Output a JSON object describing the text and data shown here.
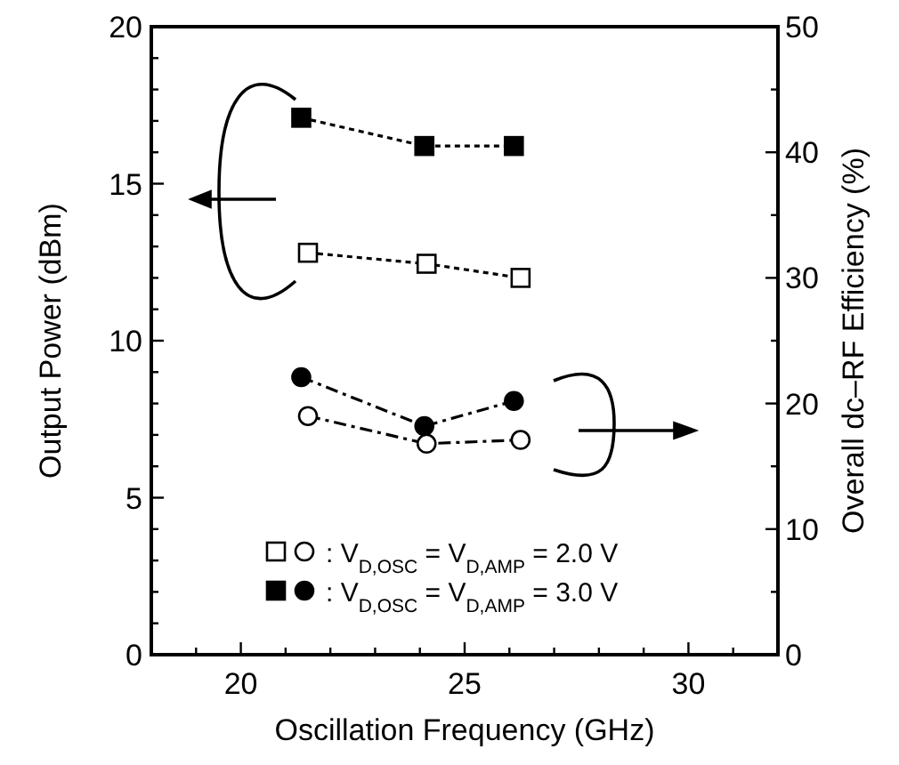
{
  "chart_data": {
    "type": "line",
    "xlabel": "Oscillation Frequency  (GHz)",
    "ylabel": "Output Power  (dBm)",
    "y2label": "Overall dc–RF Efficiency  (%)",
    "xlim": [
      18,
      32
    ],
    "xticks": [
      {
        "value": 19,
        "label": null
      },
      20,
      {
        "value": 21,
        "label": null
      },
      {
        "value": 22,
        "label": null
      },
      {
        "value": 23,
        "label": null
      },
      {
        "value": 24,
        "label": null
      },
      25,
      {
        "value": 26,
        "label": null
      },
      {
        "value": 27,
        "label": null
      },
      {
        "value": 28,
        "label": null
      },
      {
        "value": 29,
        "label": null
      },
      30,
      {
        "value": 31,
        "label": null
      }
    ],
    "ylim": [
      0,
      20
    ],
    "yticks": [
      0,
      {
        "value": 1,
        "label": null
      },
      {
        "value": 2,
        "label": null
      },
      {
        "value": 3,
        "label": null
      },
      {
        "value": 4,
        "label": null
      },
      5,
      {
        "value": 6,
        "label": null
      },
      {
        "value": 7,
        "label": null
      },
      {
        "value": 8,
        "label": null
      },
      {
        "value": 9,
        "label": null
      },
      10,
      {
        "value": 11,
        "label": null
      },
      {
        "value": 12,
        "label": null
      },
      {
        "value": 13,
        "label": null
      },
      {
        "value": 14,
        "label": null
      },
      15,
      {
        "value": 16,
        "label": null
      },
      {
        "value": 17,
        "label": null
      },
      {
        "value": 18,
        "label": null
      },
      {
        "value": 19,
        "label": null
      },
      20
    ],
    "y2lim": [
      0,
      50
    ],
    "y2ticks": [
      0,
      {
        "value": 5,
        "label": null
      },
      10,
      {
        "value": 15,
        "label": null
      },
      20,
      {
        "value": 25,
        "label": null
      },
      30,
      {
        "value": 35,
        "label": null
      },
      40,
      {
        "value": 45,
        "label": null
      },
      50
    ],
    "legend": "bottom",
    "series": [
      {
        "color": "#ffffff",
        "marker": "square",
        "line_style": "dotted",
        "x": [
          21.5,
          24.15,
          26.25
        ],
        "values": [
          12.8,
          12.45,
          12.0
        ]
      },
      {
        "color": "#000000",
        "marker": "square",
        "line_style": "dotted",
        "x": [
          21.35,
          24.1,
          26.1
        ],
        "values": [
          17.1,
          16.2,
          16.2
        ]
      },
      {
        "name": ": V$_{D,OSC}$ = V$_{D,AMP}$ = 2.0 V",
        "color": "#ffffff",
        "marker": "circle",
        "line_style": "dashed",
        "axis": "y2",
        "x": [
          21.5,
          24.15,
          26.25
        ],
        "values": [
          19.0,
          16.8,
          17.1
        ]
      },
      {
        "name": ": V$_{D,OSC}$ = V$_{D,AMP}$ = 3.0 V",
        "color": "#000000",
        "marker": "circle",
        "line_style": "dashed",
        "axis": "y2",
        "x": [
          21.35,
          24.1,
          26.1
        ],
        "values": [
          22.1,
          18.2,
          20.2
        ]
      }
    ]
  }
}
